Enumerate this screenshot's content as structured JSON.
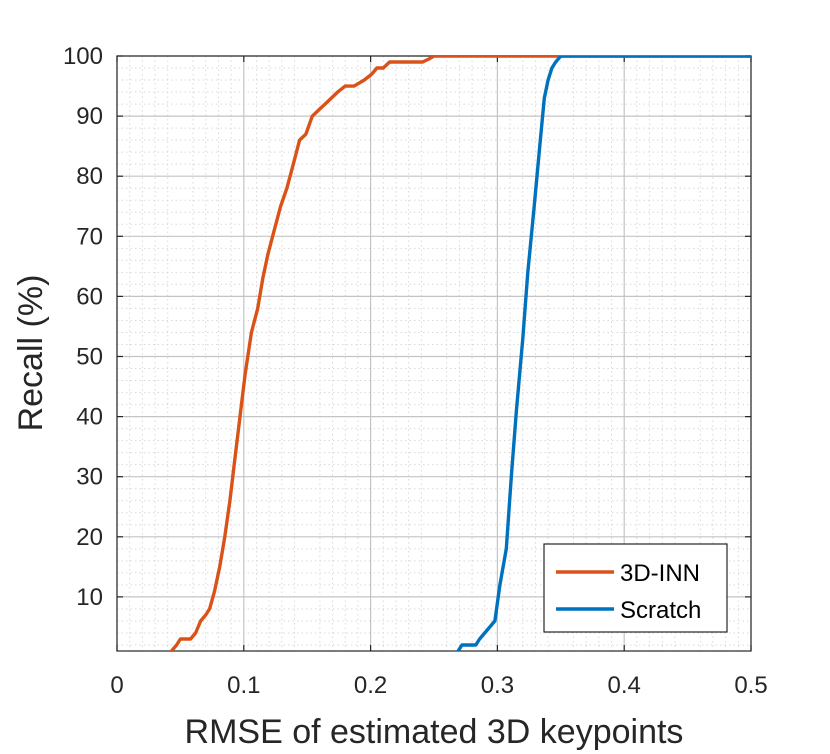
{
  "chart_data": {
    "type": "line",
    "title": "",
    "xlabel": "RMSE of estimated 3D keypoints",
    "ylabel": "Recall (%)",
    "xlim": [
      0,
      0.5
    ],
    "ylim": [
      1,
      100
    ],
    "xticks": [
      0,
      0.1,
      0.2,
      0.3,
      0.4,
      0.5
    ],
    "xtick_labels": [
      "0",
      "0.1",
      "0.2",
      "0.3",
      "0.4",
      "0.5"
    ],
    "yticks": [
      10,
      20,
      30,
      40,
      50,
      60,
      70,
      80,
      90,
      100
    ],
    "ytick_labels": [
      "10",
      "20",
      "30",
      "40",
      "50",
      "60",
      "70",
      "80",
      "90",
      "100"
    ],
    "grid": true,
    "minor_grid": true,
    "legend_position": "bottom-right",
    "series": [
      {
        "name": "3D-INN",
        "color": "#d95319",
        "x": [
          0.043,
          0.047,
          0.05,
          0.055,
          0.058,
          0.062,
          0.066,
          0.07,
          0.073,
          0.077,
          0.081,
          0.085,
          0.089,
          0.093,
          0.097,
          0.101,
          0.106,
          0.111,
          0.115,
          0.119,
          0.124,
          0.129,
          0.134,
          0.139,
          0.144,
          0.149,
          0.154,
          0.159,
          0.164,
          0.169,
          0.174,
          0.18,
          0.187,
          0.195,
          0.201,
          0.205,
          0.21,
          0.215,
          0.221,
          0.227,
          0.231,
          0.235,
          0.241,
          0.246,
          0.25,
          0.255,
          0.265,
          0.275,
          0.285,
          0.288,
          0.292,
          0.3,
          0.31,
          0.32,
          0.33,
          0.34,
          0.35,
          0.36,
          0.38,
          0.4,
          0.45,
          0.5
        ],
        "y": [
          1,
          2,
          3,
          3,
          3,
          4,
          6,
          7,
          8,
          11,
          15,
          20,
          26,
          33,
          40,
          47,
          54,
          58,
          63,
          67,
          71,
          75,
          78,
          82,
          86,
          87,
          90,
          91,
          92,
          93,
          94,
          95,
          95,
          96,
          97,
          98,
          98,
          99,
          99,
          99,
          99,
          99,
          99,
          99.5,
          100,
          100,
          100,
          100,
          100,
          100,
          100,
          100,
          100,
          100,
          100,
          100,
          100,
          100,
          100,
          100,
          100,
          100
        ]
      },
      {
        "name": "Scratch",
        "color": "#0072bd",
        "x": [
          0.269,
          0.272,
          0.276,
          0.28,
          0.283,
          0.286,
          0.29,
          0.294,
          0.298,
          0.302,
          0.307,
          0.311,
          0.315,
          0.32,
          0.324,
          0.329,
          0.333,
          0.337,
          0.34,
          0.343,
          0.346,
          0.35,
          0.353,
          0.36,
          0.38,
          0.4,
          0.45,
          0.5
        ],
        "y": [
          1,
          2,
          2,
          2,
          2,
          3,
          4,
          5,
          6,
          12,
          18,
          30,
          41,
          53,
          64,
          75,
          84,
          93,
          96,
          98,
          99,
          100,
          100,
          100,
          100,
          100,
          100,
          100
        ]
      }
    ]
  }
}
